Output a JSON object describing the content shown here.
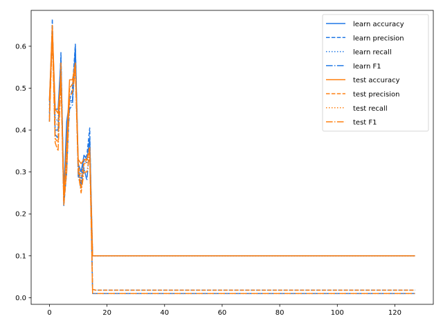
{
  "chart_data": {
    "type": "line",
    "title": "",
    "xlabel": "",
    "ylabel": "",
    "xlim": [
      -6.35,
      133.35
    ],
    "ylim": [
      -0.0158,
      0.6856
    ],
    "xticks": [
      0,
      20,
      40,
      60,
      80,
      100,
      120
    ],
    "xtick_labels": [
      "0",
      "20",
      "40",
      "60",
      "80",
      "100",
      "120"
    ],
    "yticks": [
      0.0,
      0.1,
      0.2,
      0.3,
      0.4,
      0.5,
      0.6
    ],
    "ytick_labels": [
      "0.0",
      "0.1",
      "0.2",
      "0.3",
      "0.4",
      "0.5",
      "0.6"
    ],
    "grid": false,
    "legend_position": "upper right",
    "x": [
      0,
      1,
      2,
      3,
      4,
      5,
      6,
      7,
      8,
      9,
      10,
      11,
      12,
      13,
      14,
      15,
      16,
      17,
      18,
      19,
      20,
      21,
      22,
      23,
      24,
      25,
      26,
      27,
      28,
      29,
      30,
      31,
      32,
      33,
      34,
      35,
      36,
      37,
      38,
      39,
      40,
      41,
      42,
      43,
      44,
      45,
      46,
      47,
      48,
      49,
      50,
      51,
      52,
      53,
      54,
      55,
      56,
      57,
      58,
      59,
      60,
      61,
      62,
      63,
      64,
      65,
      66,
      67,
      68,
      69,
      70,
      71,
      72,
      73,
      74,
      75,
      76,
      77,
      78,
      79,
      80,
      81,
      82,
      83,
      84,
      85,
      86,
      87,
      88,
      89,
      90,
      91,
      92,
      93,
      94,
      95,
      96,
      97,
      98,
      99,
      100,
      101,
      102,
      103,
      104,
      105,
      106,
      107,
      108,
      109,
      110,
      111,
      112,
      113,
      114,
      115,
      116,
      117,
      118,
      119,
      120,
      121,
      122,
      123,
      124,
      125,
      126,
      127
    ],
    "series": [
      {
        "name": "learn accuracy",
        "color": "#1f77e5",
        "dash": "solid",
        "head": [
          0.47,
          0.64,
          0.45,
          0.45,
          0.57,
          0.25,
          0.42,
          0.47,
          0.47,
          0.6,
          0.32,
          0.3,
          0.34,
          0.33,
          0.38,
          0.1
        ],
        "tail_value": 0.1
      },
      {
        "name": "learn precision",
        "color": "#1f77e5",
        "dash": "dashed",
        "head": [
          0.42,
          0.665,
          0.39,
          0.38,
          0.585,
          0.22,
          0.3,
          0.47,
          0.5,
          0.605,
          0.3,
          0.27,
          0.33,
          0.34,
          0.405,
          0.02
        ],
        "tail_value": 0.018
      },
      {
        "name": "learn recall",
        "color": "#1f77e5",
        "dash": "dotted",
        "head": [
          0.46,
          0.64,
          0.43,
          0.42,
          0.56,
          0.24,
          0.39,
          0.46,
          0.47,
          0.59,
          0.31,
          0.28,
          0.33,
          0.32,
          0.37,
          0.1
        ],
        "tail_value": 0.1
      },
      {
        "name": "learn F1",
        "color": "#1f77e5",
        "dash": "dashdot",
        "head": [
          0.44,
          0.63,
          0.4,
          0.4,
          0.55,
          0.22,
          0.34,
          0.45,
          0.46,
          0.58,
          0.29,
          0.26,
          0.31,
          0.28,
          0.36,
          0.01
        ],
        "tail_value": 0.01
      },
      {
        "name": "test accuracy",
        "color": "#ff7f0e",
        "dash": "solid",
        "head": [
          0.47,
          0.65,
          0.45,
          0.44,
          0.53,
          0.24,
          0.37,
          0.52,
          0.52,
          0.56,
          0.33,
          0.32,
          0.33,
          0.33,
          0.35,
          0.1
        ],
        "tail_value": 0.1
      },
      {
        "name": "test precision",
        "color": "#ff7f0e",
        "dash": "dashed",
        "head": [
          0.43,
          0.64,
          0.38,
          0.37,
          0.56,
          0.23,
          0.3,
          0.5,
          0.51,
          0.55,
          0.32,
          0.26,
          0.32,
          0.33,
          0.36,
          0.02
        ],
        "tail_value": 0.018
      },
      {
        "name": "test recall",
        "color": "#ff7f0e",
        "dash": "dotted",
        "head": [
          0.45,
          0.64,
          0.42,
          0.41,
          0.54,
          0.23,
          0.35,
          0.5,
          0.51,
          0.55,
          0.32,
          0.29,
          0.32,
          0.32,
          0.35,
          0.1
        ],
        "tail_value": 0.1
      },
      {
        "name": "test F1",
        "color": "#ff7f0e",
        "dash": "dashdot",
        "head": [
          0.42,
          0.62,
          0.37,
          0.35,
          0.52,
          0.22,
          0.31,
          0.48,
          0.49,
          0.54,
          0.3,
          0.25,
          0.3,
          0.3,
          0.34,
          0.01
        ],
        "tail_value": 0.01
      }
    ]
  }
}
